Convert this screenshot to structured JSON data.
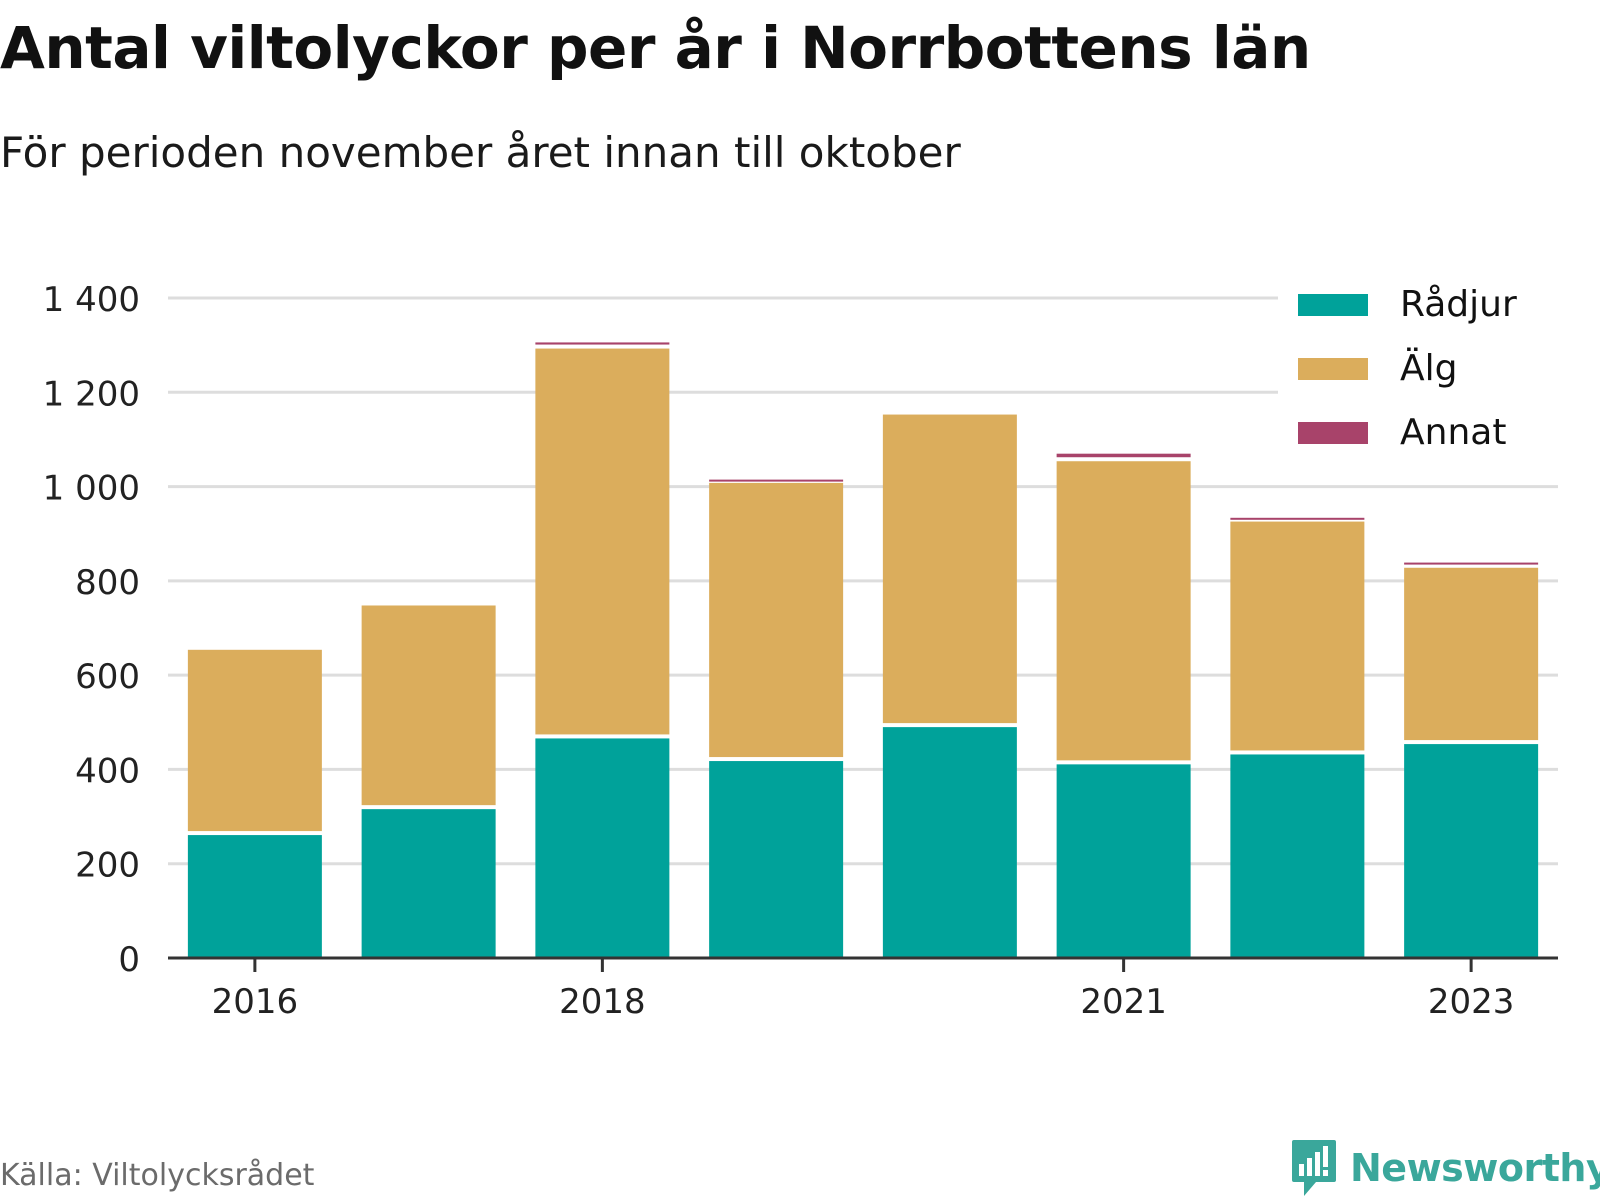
{
  "header": {
    "title": "Antal viltolyckor per år i Norrbottens län",
    "subtitle": "För perioden november året innan till oktober"
  },
  "footer": {
    "source": "Källa: Viltolycksrådet",
    "brand": "Newsworthy",
    "brand_icon": "newsworthy-logo-icon"
  },
  "colors": {
    "radjur": "#00a29a",
    "alg": "#dbad5c",
    "annat": "#a8436a",
    "grid": "#dddddd",
    "axis": "#333333",
    "brand": "#3aa79b"
  },
  "chart_data": {
    "type": "bar",
    "stacked": true,
    "x": [
      2016,
      2017,
      2018,
      2019,
      2020,
      2021,
      2022,
      2023
    ],
    "x_tick_labels": [
      "2016",
      "2018",
      "2021",
      "2023"
    ],
    "y_tick_values": [
      0,
      200,
      400,
      600,
      800,
      1000,
      1200,
      1400
    ],
    "y_tick_labels": [
      "0",
      "200",
      "400",
      "600",
      "800",
      "1 000",
      "1 200",
      "1 400"
    ],
    "ylim": [
      0,
      1400
    ],
    "grid": true,
    "legend_position": "top-right",
    "series": [
      {
        "name": "Rådjur",
        "color": "#00a29a",
        "values": [
          265,
          320,
          470,
          422,
          494,
          415,
          436,
          458
        ]
      },
      {
        "name": "Älg",
        "color": "#dbad5c",
        "values": [
          393,
          432,
          827,
          590,
          663,
          643,
          494,
          374
        ]
      },
      {
        "name": "Annat",
        "color": "#a8436a",
        "values": [
          0,
          0,
          13,
          7,
          0,
          16,
          8,
          11
        ]
      }
    ]
  }
}
